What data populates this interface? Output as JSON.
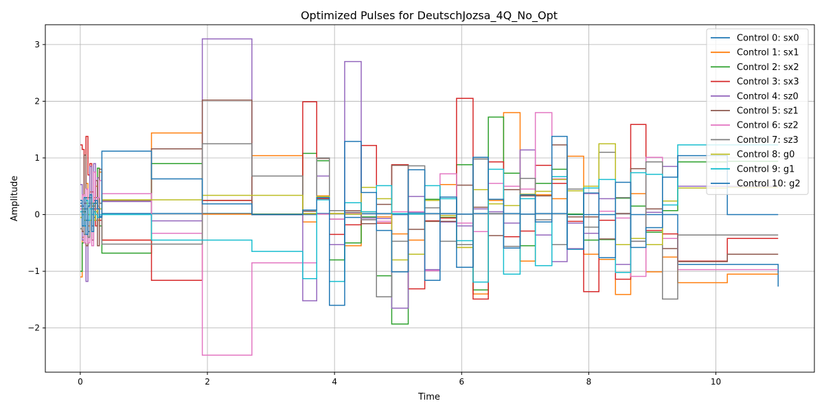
{
  "chart_data": {
    "type": "line",
    "step": "post",
    "title": "Optimized Pulses for DeutschJozsa_4Q_No_Opt",
    "xlabel": "Time",
    "ylabel": "Amplitude",
    "xlim": [
      -0.55,
      11.55
    ],
    "ylim": [
      -2.78,
      3.35
    ],
    "xticks": [
      0,
      2,
      4,
      6,
      8,
      10
    ],
    "yticks": [
      -2,
      -1,
      0,
      1,
      2,
      3
    ],
    "xtick_labels": [
      "0",
      "2",
      "4",
      "6",
      "8",
      "10"
    ],
    "ytick_labels": [
      "−2",
      "−1",
      "0",
      "1",
      "2",
      "3"
    ],
    "grid": true,
    "legend_position": "top-right",
    "series": [
      {
        "name": "Control 0: sx0",
        "color": "#1f77b4",
        "x": [
          0,
          0.03,
          0.06,
          0.09,
          0.12,
          0.15,
          0.18,
          0.21,
          0.24,
          0.27,
          0.3,
          0.34,
          1.12,
          1.92,
          2.7,
          3.5,
          3.72,
          3.92,
          4.16,
          4.42,
          4.66,
          4.9,
          5.16,
          5.42,
          5.66,
          5.92,
          6.18,
          6.42,
          6.66,
          6.92,
          7.16,
          7.42,
          7.66,
          7.92,
          8.16,
          8.42,
          8.66,
          8.9,
          9.16,
          9.4,
          10.18,
          10.98
        ],
        "y": [
          0.2,
          0.15,
          0.1,
          -0.1,
          -0.3,
          0.35,
          0.1,
          -0.05,
          0.3,
          0.1,
          -0.03,
          0.02,
          0.02,
          0.02,
          0,
          0,
          0.02,
          0.02,
          -0.05,
          0.02,
          0.02,
          0,
          0.03,
          0.02,
          0.02,
          0.01,
          0.02,
          0.02,
          0.02,
          0.01,
          0.02,
          0.02,
          0,
          0,
          0,
          0.02,
          0,
          0,
          0,
          -0.88,
          -0.88,
          -1.27
        ]
      },
      {
        "name": "Control 1: sx1",
        "color": "#ff7f0e",
        "x": [
          0,
          0.03,
          0.06,
          0.09,
          0.12,
          0.15,
          0.18,
          0.21,
          0.24,
          0.27,
          0.3,
          0.34,
          1.12,
          1.92,
          2.7,
          3.5,
          3.72,
          3.92,
          4.16,
          4.42,
          4.66,
          4.9,
          5.16,
          5.42,
          5.66,
          5.92,
          6.18,
          6.42,
          6.66,
          6.92,
          7.16,
          7.42,
          7.66,
          7.92,
          8.16,
          8.42,
          8.66,
          8.9,
          9.16,
          9.4,
          10.18,
          10.98
        ],
        "y": [
          -1.1,
          -0.4,
          0.3,
          0.55,
          -0.2,
          0.4,
          0.15,
          0.3,
          0.5,
          -0.1,
          0.75,
          -0.45,
          1.44,
          0.01,
          1.04,
          -0.13,
          0.33,
          0.02,
          -0.55,
          0.05,
          -0.04,
          -0.34,
          -0.45,
          -0.12,
          0.53,
          -0.58,
          -1.4,
          0.25,
          1.8,
          -0.82,
          0.35,
          0.28,
          1.03,
          -0.7,
          -0.79,
          -1.41,
          0.37,
          -1.01,
          -0.75,
          -1.2,
          -1.05,
          -1.05
        ]
      },
      {
        "name": "Control 2: sx2",
        "color": "#2ca02c",
        "x": [
          0,
          0.03,
          0.06,
          0.09,
          0.12,
          0.15,
          0.18,
          0.21,
          0.24,
          0.27,
          0.3,
          0.34,
          1.12,
          1.92,
          2.7,
          3.5,
          3.72,
          3.92,
          4.16,
          4.42,
          4.66,
          4.9,
          5.16,
          5.42,
          5.66,
          5.92,
          6.18,
          6.42,
          6.66,
          6.92,
          7.16,
          7.42,
          7.66,
          7.92,
          8.16,
          8.42,
          8.66,
          8.9,
          9.16,
          9.4,
          10.18,
          10.98
        ],
        "y": [
          -1.0,
          -0.5,
          0.05,
          0.3,
          -0.4,
          0.2,
          -0.3,
          0.15,
          0.2,
          0.82,
          -0.2,
          -0.68,
          0.9,
          0.25,
          0.01,
          1.08,
          0.95,
          -0.8,
          -0.5,
          -0.04,
          -1.08,
          -1.93,
          0.01,
          0.27,
          -0.05,
          0.88,
          -1.33,
          1.72,
          0.73,
          -0.55,
          0.55,
          0.8,
          0.01,
          -0.45,
          -0.44,
          0.29,
          0.15,
          -0.31,
          0.07,
          0.93,
          0.94,
          0.94
        ]
      },
      {
        "name": "Control 3: sx3",
        "color": "#d62728",
        "x": [
          0,
          0.03,
          0.06,
          0.09,
          0.12,
          0.15,
          0.18,
          0.21,
          0.24,
          0.27,
          0.3,
          0.34,
          1.12,
          1.92,
          2.7,
          3.5,
          3.72,
          3.92,
          4.16,
          4.42,
          4.66,
          4.9,
          5.16,
          5.42,
          5.66,
          5.92,
          6.18,
          6.42,
          6.66,
          6.92,
          7.16,
          7.42,
          7.66,
          7.92,
          8.16,
          8.42,
          8.66,
          8.9,
          9.16,
          9.4,
          10.18,
          10.98
        ],
        "y": [
          1.23,
          1.15,
          0.2,
          1.38,
          0.7,
          0.9,
          0.4,
          0.1,
          -0.2,
          0.3,
          -0.1,
          -0.45,
          -1.16,
          0.25,
          0,
          1.99,
          0.28,
          -0.35,
          -0.18,
          1.22,
          -0.15,
          0.88,
          -1.31,
          -0.11,
          -0.06,
          2.05,
          -1.49,
          0.93,
          -0.39,
          -0.29,
          0.87,
          0.55,
          -0.12,
          -1.36,
          -0.1,
          -1.14,
          1.59,
          -0.28,
          -0.34,
          -0.82,
          -0.42,
          -0.42
        ]
      },
      {
        "name": "Control 4: sz0",
        "color": "#9467bd",
        "x": [
          0,
          0.03,
          0.06,
          0.09,
          0.12,
          0.15,
          0.18,
          0.21,
          0.24,
          0.27,
          0.3,
          0.34,
          1.12,
          1.92,
          2.7,
          3.5,
          3.72,
          3.92,
          4.16,
          4.42,
          4.66,
          4.9,
          5.16,
          5.42,
          5.66,
          5.92,
          6.18,
          6.42,
          6.66,
          6.92,
          7.16,
          7.42,
          7.66,
          7.92,
          8.16,
          8.42,
          8.66,
          8.9,
          9.16,
          9.4,
          10.18,
          10.98
        ],
        "y": [
          0.53,
          -0.45,
          0.3,
          -1.18,
          0.2,
          0.85,
          -0.2,
          0.9,
          0.1,
          0.65,
          0.2,
          0.23,
          -0.11,
          3.1,
          0,
          -1.52,
          0.68,
          -0.53,
          2.7,
          -0.06,
          -0.07,
          -1.65,
          0.32,
          -0.97,
          -0.13,
          -0.2,
          0.1,
          0.05,
          -0.15,
          1.14,
          -0.36,
          -0.83,
          -0.15,
          -0.33,
          0.28,
          -0.88,
          -0.47,
          0.04,
          0.85,
          0.5,
          0.5,
          0.5
        ]
      },
      {
        "name": "Control 5: sz1",
        "color": "#8c564b",
        "x": [
          0,
          0.03,
          0.06,
          0.09,
          0.12,
          0.15,
          0.18,
          0.21,
          0.24,
          0.27,
          0.3,
          0.34,
          1.12,
          1.92,
          2.7,
          3.5,
          3.72,
          3.92,
          4.16,
          4.42,
          4.66,
          4.9,
          5.16,
          5.42,
          5.66,
          5.92,
          6.18,
          6.42,
          6.66,
          6.92,
          7.16,
          7.42,
          7.66,
          7.92,
          8.16,
          8.42,
          8.66,
          8.9,
          9.16,
          9.4,
          10.18,
          10.98
        ],
        "y": [
          0.15,
          -0.3,
          1.05,
          -0.55,
          0.3,
          0.1,
          -0.45,
          0.25,
          0.6,
          -0.55,
          0.8,
          0.25,
          1.16,
          2.02,
          0,
          0.06,
          0.99,
          -0.08,
          0.07,
          -0.16,
          0.18,
          0.87,
          -0.26,
          -0.12,
          -0.12,
          0.52,
          0.13,
          -0.37,
          0.44,
          0.33,
          0.33,
          1.23,
          -0.04,
          -0.04,
          -0.43,
          0.02,
          0.81,
          0.1,
          -0.6,
          -0.83,
          -0.7,
          -0.7
        ]
      },
      {
        "name": "Control 6: sz2",
        "color": "#e377c2",
        "x": [
          0,
          0.03,
          0.06,
          0.09,
          0.12,
          0.15,
          0.18,
          0.21,
          0.24,
          0.27,
          0.3,
          0.34,
          1.12,
          1.92,
          2.7,
          3.5,
          3.72,
          3.92,
          4.16,
          4.42,
          4.66,
          4.9,
          5.16,
          5.42,
          5.66,
          5.92,
          6.18,
          6.42,
          6.66,
          6.92,
          7.16,
          7.42,
          7.66,
          7.92,
          8.16,
          8.42,
          8.66,
          8.9,
          9.16,
          9.4,
          10.18,
          10.98
        ],
        "y": [
          0.1,
          0.35,
          -0.5,
          0.45,
          -0.5,
          0.2,
          -0.55,
          0.75,
          0.05,
          0.3,
          0.6,
          0.37,
          -0.33,
          -2.48,
          -0.85,
          -0.85,
          0.01,
          -0.08,
          0.02,
          -0.09,
          -0.12,
          0.05,
          0.05,
          -0.99,
          0.72,
          -0.15,
          -0.3,
          0.55,
          0.5,
          0.45,
          1.8,
          0.63,
          -0.6,
          0.37,
          0.06,
          -0.06,
          -1.09,
          1.01,
          -0.42,
          -0.97,
          -0.97,
          -0.97
        ]
      },
      {
        "name": "Control 7: sz3",
        "color": "#7f7f7f",
        "x": [
          0,
          0.03,
          0.06,
          0.09,
          0.12,
          0.15,
          0.18,
          0.21,
          0.24,
          0.27,
          0.3,
          0.34,
          1.12,
          1.92,
          2.7,
          3.5,
          3.72,
          3.92,
          4.16,
          4.42,
          4.66,
          4.9,
          5.16,
          5.42,
          5.66,
          5.92,
          6.18,
          6.42,
          6.66,
          6.92,
          7.16,
          7.42,
          7.66,
          7.92,
          8.16,
          8.42,
          8.66,
          8.9,
          9.16,
          9.4,
          10.18,
          10.98
        ],
        "y": [
          -0.25,
          0.05,
          -0.35,
          0.1,
          -0.4,
          0.3,
          -0.2,
          0.2,
          -0.1,
          0.15,
          0.2,
          -0.52,
          -0.52,
          1.25,
          0.68,
          0.01,
          1.0,
          0.07,
          0.04,
          -0.09,
          -1.45,
          -0.47,
          0.86,
          0.12,
          -0.47,
          -0.53,
          0.98,
          0.02,
          -0.56,
          0.64,
          -0.09,
          -0.53,
          0.45,
          -0.22,
          1.1,
          0.3,
          -0.47,
          0.93,
          -1.49,
          -0.36,
          -0.36,
          -0.36
        ]
      },
      {
        "name": "Control 8: g0",
        "color": "#bcbd22",
        "x": [
          0,
          0.03,
          0.06,
          0.09,
          0.12,
          0.15,
          0.18,
          0.21,
          0.24,
          0.27,
          0.3,
          0.34,
          1.12,
          1.92,
          2.7,
          3.5,
          3.72,
          3.92,
          4.16,
          4.42,
          4.66,
          4.9,
          5.16,
          5.42,
          5.66,
          5.92,
          6.18,
          6.42,
          6.66,
          6.92,
          7.16,
          7.42,
          7.66,
          7.92,
          8.16,
          8.42,
          8.66,
          8.9,
          9.16,
          9.4,
          10.18,
          10.98
        ],
        "y": [
          -0.05,
          0.1,
          -0.1,
          0.2,
          0,
          -0.1,
          0.2,
          -0.1,
          0.05,
          0.1,
          0.1,
          0.26,
          0.26,
          0.34,
          0.34,
          0.02,
          0.32,
          0.02,
          0.01,
          0.48,
          0.28,
          -0.8,
          -0.7,
          0.25,
          -0.02,
          -0.58,
          0.44,
          0.19,
          0.16,
          0.36,
          0.41,
          0.62,
          0.42,
          0.5,
          1.25,
          -0.53,
          -0.42,
          -0.53,
          0.24,
          0.47,
          0.48,
          0.48
        ]
      },
      {
        "name": "Control 9: g1",
        "color": "#17becf",
        "x": [
          0,
          0.03,
          0.06,
          0.09,
          0.12,
          0.15,
          0.18,
          0.21,
          0.24,
          0.27,
          0.3,
          0.34,
          1.12,
          1.92,
          2.7,
          3.5,
          3.72,
          3.92,
          4.16,
          4.42,
          4.66,
          4.9,
          5.16,
          5.42,
          5.66,
          5.92,
          6.18,
          6.42,
          6.66,
          6.92,
          7.16,
          7.42,
          7.66,
          7.92,
          8.16,
          8.42,
          8.66,
          8.9,
          9.16,
          9.4,
          10.18,
          10.98
        ],
        "y": [
          0.05,
          0,
          -0.2,
          0.25,
          -0.1,
          0.1,
          0,
          0.05,
          0,
          -0.05,
          0,
          0,
          -0.45,
          -0.45,
          -0.65,
          -1.13,
          0.26,
          -1.18,
          0.21,
          0.05,
          0.51,
          0.02,
          0.01,
          0.51,
          0.28,
          -0.46,
          -1.19,
          0.8,
          -1.05,
          0.28,
          -0.9,
          0.67,
          -0.61,
          0.47,
          0.62,
          -1.02,
          0.74,
          0.71,
          0.17,
          1.23,
          1.23,
          1.23
        ]
      },
      {
        "name": "Control 10: g2",
        "color": "#1f77b4",
        "x": [
          0,
          0.03,
          0.06,
          0.09,
          0.12,
          0.15,
          0.18,
          0.21,
          0.24,
          0.27,
          0.3,
          0.34,
          1.12,
          1.92,
          2.7,
          3.5,
          3.72,
          3.92,
          4.16,
          4.42,
          4.66,
          4.9,
          5.16,
          5.42,
          5.66,
          5.92,
          6.18,
          6.42,
          6.66,
          6.92,
          7.16,
          7.42,
          7.66,
          7.92,
          8.16,
          8.42,
          8.66,
          8.9,
          9.16,
          9.4,
          10.18,
          10.98
        ],
        "y": [
          0.25,
          -0.2,
          0.3,
          -0.35,
          0.15,
          0.35,
          -0.3,
          0.2,
          0.25,
          0.1,
          -0.05,
          1.12,
          0.63,
          0.19,
          0,
          0.08,
          0.3,
          -1.6,
          1.29,
          0.39,
          -0.28,
          -1.01,
          0.79,
          -1.16,
          0.31,
          -0.93,
          1.01,
          0.27,
          -0.59,
          0.35,
          -0.13,
          1.38,
          -0.61,
          0.38,
          -0.76,
          0.57,
          -0.58,
          -0.23,
          0.66,
          1.04,
          0,
          0
        ]
      }
    ]
  }
}
